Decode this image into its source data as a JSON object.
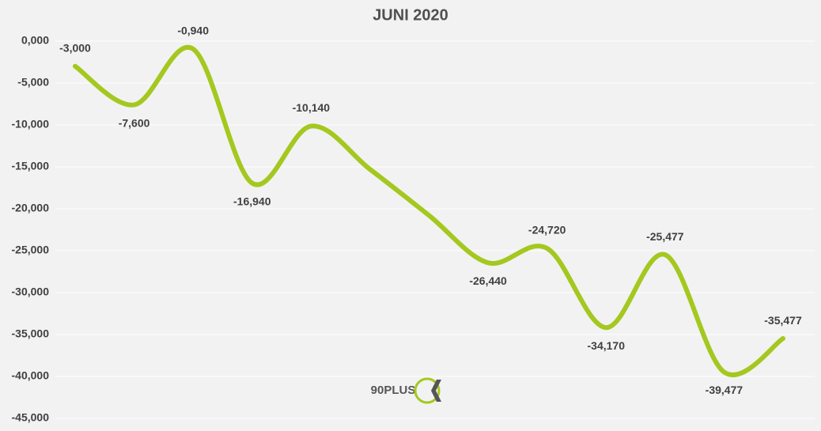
{
  "chart_data": {
    "type": "line",
    "title": "JUNI 2020",
    "categories": [
      null,
      null,
      null,
      null,
      null,
      null,
      null,
      null,
      null,
      null,
      null,
      null,
      null
    ],
    "series": [
      {
        "name": null,
        "color": "#a4c81f",
        "values": [
          -3,
          -7.6,
          -0.94,
          -16.94,
          -10.14,
          -15.3,
          -20.8,
          -26.44,
          -24.72,
          -34.17,
          -25.477,
          -39.477,
          -35.477
        ],
        "value_labels": [
          "-3,000",
          "-7,600",
          "-0,940",
          "-16,940",
          "-10,140",
          null,
          null,
          "-26,440",
          "-24,720",
          "-34,170",
          "-25,477",
          "-39,477",
          "-35,477"
        ]
      }
    ],
    "ylim": [
      -45,
      0
    ],
    "yticks": [
      {
        "value": 0,
        "label": "0,000"
      },
      {
        "value": -5,
        "label": "-5,000"
      },
      {
        "value": -10,
        "label": "-10,000"
      },
      {
        "value": -15,
        "label": "-15,000"
      },
      {
        "value": -20,
        "label": "-20,000"
      },
      {
        "value": -25,
        "label": "-25,000"
      },
      {
        "value": -30,
        "label": "-30,000"
      },
      {
        "value": -35,
        "label": "-35,000"
      },
      {
        "value": -40,
        "label": "-40,000"
      },
      {
        "value": -45,
        "label": "-45,000"
      }
    ],
    "grid": true,
    "watermark": "90PLUS"
  }
}
